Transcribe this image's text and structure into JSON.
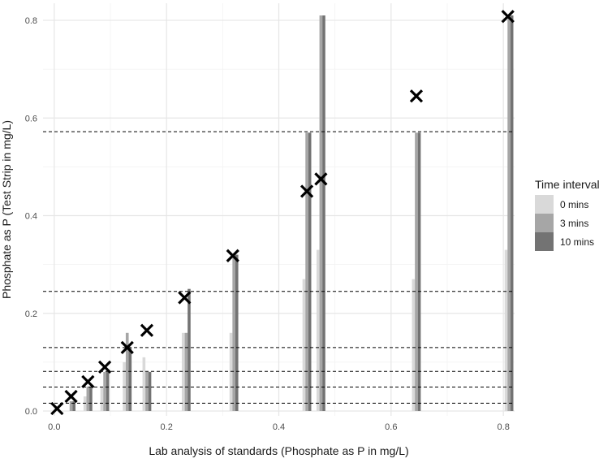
{
  "chart_data": {
    "type": "bar",
    "xlabel": "Lab analysis of standards (Phosphate as P in mg/L)",
    "ylabel": "Phosphate as P (Test Strip in mg/L)",
    "xlim": [
      -0.02,
      0.82
    ],
    "ylim": [
      -0.01,
      0.835
    ],
    "x_ticks": [
      0.0,
      0.2,
      0.4,
      0.6,
      0.8
    ],
    "x_tick_labels": [
      "0.0",
      "0.2",
      "0.4",
      "0.6",
      "0.8"
    ],
    "y_ticks": [
      0.0,
      0.2,
      0.4,
      0.6,
      0.8
    ],
    "y_tick_labels": [
      "0.0",
      "0.2",
      "0.4",
      "0.6",
      "0.8"
    ],
    "grid": true,
    "legend": {
      "title": "Time interval",
      "position": "right",
      "entries": [
        {
          "label": "0 mins",
          "color": "#d9d9d9"
        },
        {
          "label": "3 mins",
          "color": "#a6a6a6"
        },
        {
          "label": "10 mins",
          "color": "#737373"
        }
      ]
    },
    "x": [
      0.0,
      0.03,
      0.06,
      0.09,
      0.13,
      0.165,
      0.235,
      0.32,
      0.45,
      0.475,
      0.645,
      0.81
    ],
    "series": [
      {
        "name": "0 mins",
        "color": "#d9d9d9",
        "values": [
          0.0,
          0.0,
          0.03,
          0.05,
          0.1,
          0.11,
          0.16,
          0.16,
          0.27,
          0.33,
          0.27,
          0.33
        ]
      },
      {
        "name": "3 mins",
        "color": "#a6a6a6",
        "values": [
          0.0,
          0.02,
          0.05,
          0.08,
          0.16,
          0.08,
          0.16,
          0.32,
          0.57,
          0.81,
          0.57,
          0.81
        ]
      },
      {
        "name": "10 mins",
        "color": "#737373",
        "values": [
          0.0,
          0.02,
          0.05,
          0.08,
          0.13,
          0.08,
          0.25,
          0.32,
          0.57,
          0.81,
          0.57,
          0.81
        ]
      }
    ],
    "markers": {
      "symbol": "x",
      "color": "#000000",
      "points": [
        {
          "x": 0.005,
          "y": 0.005
        },
        {
          "x": 0.03,
          "y": 0.03
        },
        {
          "x": 0.06,
          "y": 0.06
        },
        {
          "x": 0.09,
          "y": 0.09
        },
        {
          "x": 0.13,
          "y": 0.13
        },
        {
          "x": 0.165,
          "y": 0.165
        },
        {
          "x": 0.232,
          "y": 0.232
        },
        {
          "x": 0.318,
          "y": 0.318
        },
        {
          "x": 0.45,
          "y": 0.45
        },
        {
          "x": 0.475,
          "y": 0.475
        },
        {
          "x": 0.645,
          "y": 0.645
        },
        {
          "x": 0.808,
          "y": 0.808
        }
      ]
    },
    "reference_lines": {
      "style": "dashed",
      "y": [
        0.016,
        0.049,
        0.081,
        0.13,
        0.245,
        0.572
      ]
    }
  }
}
